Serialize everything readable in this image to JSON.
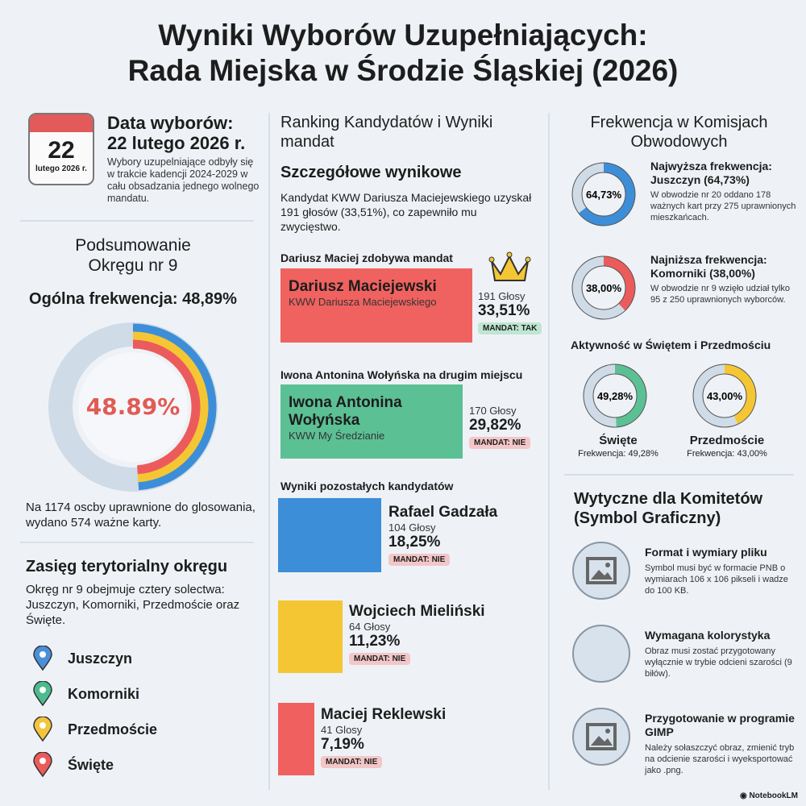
{
  "title": [
    "Wyniki Wyborów Uzupełniających:",
    "Rada Miejska w Środzie Śląskiej (2026)"
  ],
  "date": {
    "cal_day": "22",
    "cal_month": "lutego 2026 r.",
    "heading": [
      "Data wyborów:",
      "22 lutego 2026 r."
    ],
    "desc": "Wybory uzupelniające odbyły się w trakcie kadencji 2024-2029 w cału obsadzania jednego wolnego mandatu."
  },
  "summary": {
    "heading": [
      "Podsumowanie",
      "Okręgu nr 9"
    ],
    "turnout_label": "Ogólna frekwencja: 48,89%",
    "donut_label": "48.89%",
    "turnout": 48.89,
    "desc": "Na 1174 oscby uprawnione do glosowania, wydano 574 ważne karty."
  },
  "territory": {
    "heading": "Zasięg terytorialny okręgu",
    "desc": "Okręg nr 9 obejmuje cztery solectwa: Juszczyn, Komorniki, Przedmoście oraz Święte.",
    "places": [
      {
        "name": "Juszczyn",
        "color": "#4a90d9"
      },
      {
        "name": "Komorniki",
        "color": "#4dbb8f"
      },
      {
        "name": "Przedmoście",
        "color": "#f2c53d"
      },
      {
        "name": "Święte",
        "color": "#ec5b5b"
      }
    ]
  },
  "ranking": {
    "heading": "Ranking Kandydatów i Wyniki mandat",
    "sub": "Szczegółowe wynikowe",
    "desc": "Kandydat KWW Dariusza Maciejewskiego uzyskał 191 głosów (33,51%), co zapewniło mu zwycięstwo.",
    "winner_label": "Dariusz Maciej zdobywa mandat",
    "second_label": "Iwona Antonina Wołyńska na drugim miejscu",
    "others_label": "Wyniki pozostałych kandydatów",
    "candidates": [
      {
        "name": "Dariusz Maciejewski",
        "committee": "KWW Dariusza Maciejewskiego",
        "votes": "191 Głosy",
        "pct": "33,51%",
        "share": 33.51,
        "mandate": "MANDAT: TAK",
        "color": "#f0625f"
      },
      {
        "name": "Iwona Antonina Wołyńska",
        "committee": "KWW My Średzianie",
        "votes": "170 Głosy",
        "pct": "29,82%",
        "share": 29.82,
        "mandate": "MANDAT: NIE",
        "color": "#5cc095"
      },
      {
        "name": "Rafael Gadzała",
        "votes": "104 Głosy",
        "pct": "18,25%",
        "share": 18.25,
        "mandate": "MANDAT: NIE",
        "color": "#3d8ed8"
      },
      {
        "name": "Wojciech Mieliński",
        "votes": "64 Głosy",
        "pct": "11,23%",
        "share": 11.23,
        "mandate": "MANDAT: NIE",
        "color": "#f5c634"
      },
      {
        "name": "Maciej Reklewski",
        "votes": "41 Glosy",
        "pct": "7,19%",
        "share": 7.19,
        "mandate": "MANDAT: NIE",
        "color": "#f0605e"
      }
    ]
  },
  "turnout": {
    "heading": [
      "Frekwencja w Komisjach",
      "Obwodowych"
    ],
    "highest": {
      "label": "64,73%",
      "value": 64.73,
      "title": [
        "Najwyższa frekwencja:",
        "Juszczyn (64,73%)"
      ],
      "desc": "W obwodzie nr 20 oddano 178 ważnych kart przy 275 uprawnionych mieszkańcach.",
      "color": "#3d8ed8"
    },
    "lowest": {
      "label": "38,00%",
      "value": 38.0,
      "title": [
        "Najniższa frekwencja:",
        "Komorniki (38,00%)"
      ],
      "desc": "W obwodzie nr 9 wzięło udział tylko 95 z 250 uprawnionych wyborców.",
      "color": "#ec5b5b"
    },
    "activity_heading": "Aktywność w Świętem i Przedmościu",
    "swiete": {
      "label": "49,28%",
      "value": 49.28,
      "name": "Święte",
      "sub": "Frekwencja: 49,28%",
      "color": "#5cc095"
    },
    "przedmoscie": {
      "label": "43,00%",
      "value": 43.0,
      "name": "Przedmoście",
      "sub": "Frekwencja: 43,00%",
      "color": "#f5c634"
    }
  },
  "guidelines": {
    "heading": [
      "Wytyczne dla Komitetów",
      "(Symbol Graficzny)"
    ],
    "items": [
      {
        "title": "Format i wymiary pliku",
        "desc": "Symbol musi być w formacie PNB o wymiarach 106 x 106 pikseli i wadze do 100 KB.",
        "icon": "image-file-icon"
      },
      {
        "title": "Wymagana kolorystyka",
        "desc": "Obraz musi zostać przygotowany wyłącznie w trybie odcieni szarości (9 biłów).",
        "icon": "blank-circle"
      },
      {
        "title": "Przygotowanie w programie GIMP",
        "desc": "Należy sołaszczyć obraz, zmienić tryb na odcienie szarości i wyeksportować jako .png.",
        "icon": "image-icon"
      }
    ]
  },
  "footer": "NotebookLM"
}
